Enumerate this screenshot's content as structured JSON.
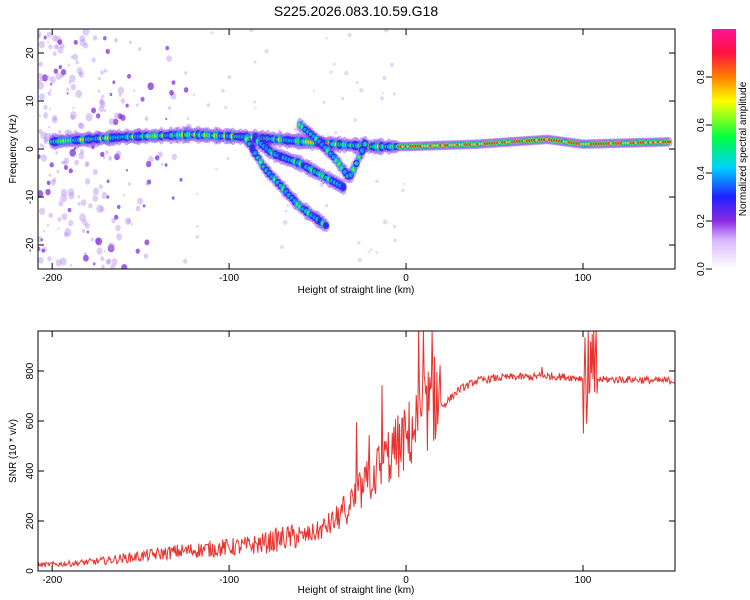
{
  "title": "S225.2026.083.10.59.G18",
  "colors": {
    "snr_line": "#e8322e",
    "axis": "#000000",
    "background": "#ffffff"
  },
  "chart_data": [
    {
      "type": "heatmap",
      "name": "spectrogram",
      "xlabel": "Height of straight line (km)",
      "ylabel": "Frequency (Hz)",
      "xlim": [
        -208,
        152
      ],
      "ylim": [
        -25,
        25
      ],
      "xticks": [
        -200,
        -100,
        0,
        100
      ],
      "yticks": [
        -20,
        -10,
        0,
        10,
        20
      ],
      "colorbar": {
        "label": "Normalized spectral amplitude",
        "range": [
          0,
          1
        ],
        "ticks": [
          0.0,
          0.2,
          0.4,
          0.6,
          0.8
        ],
        "tick_labels": [
          "0.0",
          "0.2",
          "0.4",
          "0.6",
          "0.8"
        ]
      },
      "features": [
        {
          "label": "main band",
          "points": [
            [
              -200,
              1.5
            ],
            [
              -160,
              2.5
            ],
            [
              -120,
              3
            ],
            [
              -90,
              2.5
            ],
            [
              -40,
              1
            ],
            [
              -20,
              0.5
            ],
            [
              0,
              0.5
            ],
            [
              40,
              1
            ],
            [
              80,
              2
            ],
            [
              100,
              1
            ],
            [
              150,
              1.5
            ]
          ]
        },
        {
          "label": "descending branch A",
          "points": [
            [
              -90,
              2
            ],
            [
              -80,
              -4
            ],
            [
              -70,
              -8
            ],
            [
              -60,
              -12
            ],
            [
              -45,
              -16
            ]
          ]
        },
        {
          "label": "descending branch B",
          "points": [
            [
              -85,
              2
            ],
            [
              -75,
              -1
            ],
            [
              -60,
              -3
            ],
            [
              -45,
              -6
            ],
            [
              -35,
              -8
            ]
          ]
        },
        {
          "label": "ascending branch",
          "points": [
            [
              -60,
              5
            ],
            [
              -50,
              2
            ],
            [
              -40,
              -2
            ],
            [
              -32,
              -6
            ],
            [
              -28,
              -3
            ],
            [
              -22,
              2
            ]
          ]
        }
      ]
    },
    {
      "type": "line",
      "name": "snr",
      "xlabel": "Height of straight line (km)",
      "ylabel": "SNR (10 * v/v)",
      "xlim": [
        -208,
        152
      ],
      "ylim": [
        0,
        960
      ],
      "xticks": [
        -200,
        -100,
        0,
        100
      ],
      "yticks": [
        0,
        200,
        400,
        600,
        800
      ],
      "series": [
        {
          "name": "SNR",
          "x": [
            -208,
            -190,
            -170,
            -150,
            -130,
            -110,
            -90,
            -80,
            -70,
            -60,
            -50,
            -40,
            -30,
            -20,
            -10,
            0,
            10,
            20,
            30,
            40,
            50,
            60,
            70,
            80,
            90,
            100,
            110,
            120,
            130,
            140,
            152
          ],
          "values": [
            20,
            25,
            35,
            50,
            65,
            75,
            85,
            95,
            110,
            120,
            140,
            180,
            250,
            330,
            410,
            470,
            560,
            650,
            720,
            755,
            765,
            770,
            770,
            775,
            770,
            765,
            760,
            760,
            760,
            755,
            755
          ]
        }
      ]
    }
  ]
}
